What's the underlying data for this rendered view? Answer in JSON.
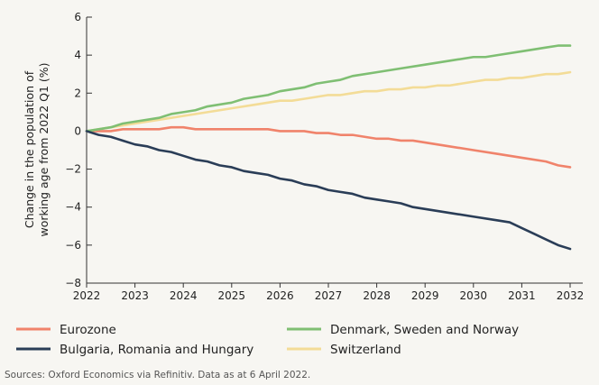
{
  "chart_data": {
    "type": "line",
    "ylabel_lines": [
      "Change in the population of",
      "working age from 2022 Q1 (%)"
    ],
    "xlim": [
      2022,
      2032
    ],
    "ylim": [
      -8,
      6
    ],
    "x_ticks": [
      2022,
      2023,
      2024,
      2025,
      2026,
      2027,
      2028,
      2029,
      2030,
      2031,
      2032
    ],
    "y_ticks": [
      6,
      4,
      2,
      0,
      -2,
      -4,
      -6,
      -8
    ],
    "y_tick_labels": [
      "6",
      "4",
      "2",
      "0",
      "−2",
      "−4",
      "−6",
      "−8"
    ],
    "grid": false,
    "legend_placement": "bottom",
    "series": [
      {
        "name": "Eurozone",
        "color": "#f0836b",
        "x": [
          2022,
          2022.25,
          2022.5,
          2022.75,
          2023,
          2023.25,
          2023.5,
          2023.75,
          2024,
          2024.25,
          2024.5,
          2025,
          2025.5,
          2025.75,
          2026,
          2026.25,
          2026.5,
          2026.75,
          2027,
          2027.25,
          2027.5,
          2027.75,
          2028,
          2028.25,
          2028.5,
          2028.75,
          2029,
          2029.5,
          2030,
          2030.5,
          2031,
          2031.5,
          2031.75,
          2032
        ],
        "values": [
          0,
          0,
          0,
          0.1,
          0.1,
          0.1,
          0.1,
          0.2,
          0.2,
          0.1,
          0.1,
          0.1,
          0.1,
          0.1,
          0,
          0,
          0,
          -0.1,
          -0.1,
          -0.2,
          -0.2,
          -0.3,
          -0.4,
          -0.4,
          -0.5,
          -0.5,
          -0.6,
          -0.8,
          -1.0,
          -1.2,
          -1.4,
          -1.6,
          -1.8,
          -1.9
        ]
      },
      {
        "name": "Denmark, Sweden and Norway",
        "color": "#7fbf73",
        "x": [
          2022,
          2022.5,
          2022.75,
          2023,
          2023.5,
          2023.75,
          2024,
          2024.25,
          2024.5,
          2025,
          2025.25,
          2025.75,
          2026,
          2026.5,
          2026.75,
          2027,
          2027.25,
          2027.5,
          2028,
          2028.5,
          2029,
          2029.5,
          2030,
          2030.25,
          2030.5,
          2031,
          2031.5,
          2031.75,
          2032
        ],
        "values": [
          0,
          0.2,
          0.4,
          0.5,
          0.7,
          0.9,
          1.0,
          1.1,
          1.3,
          1.5,
          1.7,
          1.9,
          2.1,
          2.3,
          2.5,
          2.6,
          2.7,
          2.9,
          3.1,
          3.3,
          3.5,
          3.7,
          3.9,
          3.9,
          4.0,
          4.2,
          4.4,
          4.5,
          4.5
        ]
      },
      {
        "name": "Bulgaria, Romania and Hungary",
        "color": "#2a3d57",
        "x": [
          2022,
          2022.25,
          2022.5,
          2022.75,
          2023,
          2023.25,
          2023.5,
          2023.75,
          2024,
          2024.25,
          2024.5,
          2024.75,
          2025,
          2025.25,
          2025.5,
          2025.75,
          2026,
          2026.25,
          2026.5,
          2026.75,
          2027,
          2027.25,
          2027.5,
          2027.75,
          2028,
          2028.25,
          2028.5,
          2028.75,
          2029,
          2029.5,
          2030,
          2030.5,
          2030.75,
          2031,
          2031.25,
          2031.5,
          2031.75,
          2032
        ],
        "values": [
          0,
          -0.2,
          -0.3,
          -0.5,
          -0.7,
          -0.8,
          -1.0,
          -1.1,
          -1.3,
          -1.5,
          -1.6,
          -1.8,
          -1.9,
          -2.1,
          -2.2,
          -2.3,
          -2.5,
          -2.6,
          -2.8,
          -2.9,
          -3.1,
          -3.2,
          -3.3,
          -3.5,
          -3.6,
          -3.7,
          -3.8,
          -4.0,
          -4.1,
          -4.3,
          -4.5,
          -4.7,
          -4.8,
          -5.1,
          -5.4,
          -5.7,
          -6.0,
          -6.2
        ]
      },
      {
        "name": "Switzerland",
        "color": "#f3dc97",
        "x": [
          2022,
          2022.5,
          2023,
          2023.5,
          2024,
          2024.5,
          2025,
          2025.5,
          2026,
          2026.25,
          2026.5,
          2027,
          2027.25,
          2027.5,
          2027.75,
          2028,
          2028.25,
          2028.5,
          2028.75,
          2029,
          2029.25,
          2029.5,
          2029.75,
          2030,
          2030.25,
          2030.5,
          2030.75,
          2031,
          2031.25,
          2031.5,
          2031.75,
          2032
        ],
        "values": [
          0,
          0.2,
          0.4,
          0.6,
          0.8,
          1.0,
          1.2,
          1.4,
          1.6,
          1.6,
          1.7,
          1.9,
          1.9,
          2.0,
          2.1,
          2.1,
          2.2,
          2.2,
          2.3,
          2.3,
          2.4,
          2.4,
          2.5,
          2.6,
          2.7,
          2.7,
          2.8,
          2.8,
          2.9,
          3.0,
          3.0,
          3.1
        ]
      }
    ],
    "legend_order": [
      0,
      1,
      2,
      3
    ],
    "source": "Sources: Oxford Economics via Refinitiv. Data as at 6 April 2022."
  }
}
